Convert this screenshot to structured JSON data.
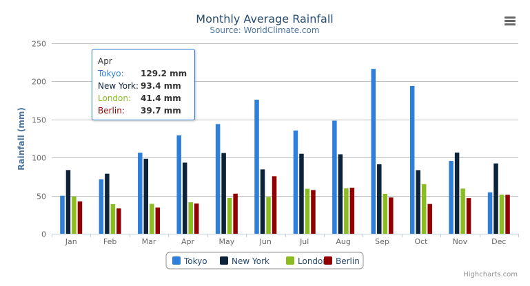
{
  "chart_data": {
    "type": "bar",
    "title": "Monthly Average Rainfall",
    "subtitle": "Source: WorldClimate.com",
    "ylabel": "Rainfall (mm)",
    "xlabel": "",
    "ylim": [
      0,
      250
    ],
    "yticks": [
      0,
      50,
      100,
      150,
      200,
      250
    ],
    "grid": true,
    "legend": "bottom-center",
    "categories": [
      "Jan",
      "Feb",
      "Mar",
      "Apr",
      "May",
      "Jun",
      "Jul",
      "Aug",
      "Sep",
      "Oct",
      "Nov",
      "Dec"
    ],
    "series": [
      {
        "name": "Tokyo",
        "color": "#2f7ed8",
        "values": [
          49.9,
          71.5,
          106.4,
          129.2,
          144.0,
          176.0,
          135.6,
          148.5,
          216.4,
          194.1,
          95.6,
          54.4
        ]
      },
      {
        "name": "New York",
        "color": "#0d233a",
        "values": [
          83.6,
          78.8,
          98.5,
          93.4,
          106.0,
          84.5,
          105.0,
          104.3,
          91.2,
          83.5,
          106.6,
          92.3
        ]
      },
      {
        "name": "London",
        "color": "#8bbc21",
        "values": [
          48.9,
          38.8,
          39.3,
          41.4,
          47.0,
          48.3,
          59.0,
          59.6,
          52.4,
          65.2,
          59.3,
          51.2
        ]
      },
      {
        "name": "Berlin",
        "color": "#910000",
        "values": [
          42.4,
          33.2,
          34.5,
          39.7,
          52.6,
          75.5,
          57.4,
          60.4,
          47.6,
          39.1,
          46.8,
          51.1
        ]
      }
    ]
  },
  "tooltip": {
    "header": "Apr",
    "rows": [
      {
        "name": "Tokyo:",
        "value": "129.2 mm",
        "color": "#2f7ed8"
      },
      {
        "name": "New York:",
        "value": "93.4 mm",
        "color": "#0d233a"
      },
      {
        "name": "London:",
        "value": "41.4 mm",
        "color": "#8bbc21"
      },
      {
        "name": "Berlin:",
        "value": "39.7 mm",
        "color": "#910000"
      }
    ]
  },
  "menu_icon": "hamburger-menu-icon",
  "credits": "Highcharts.com"
}
